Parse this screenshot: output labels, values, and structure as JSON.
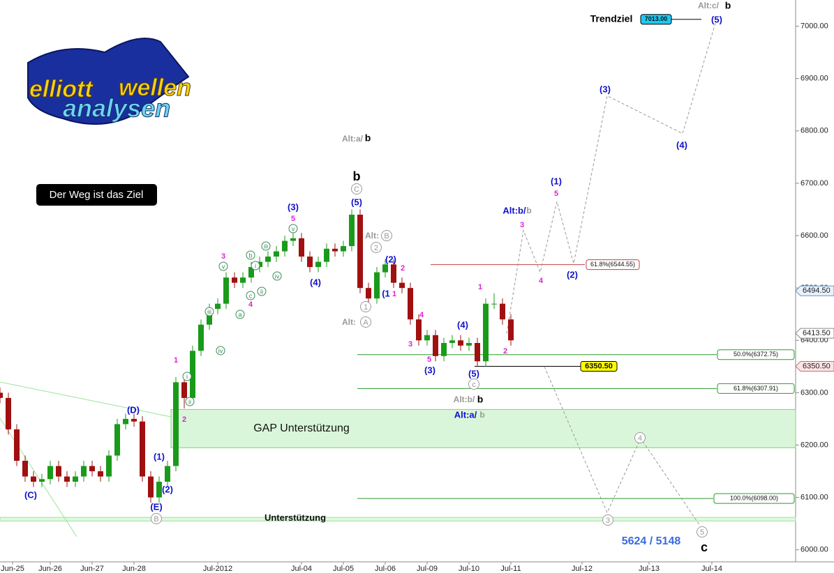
{
  "chart_data": {
    "type": "candlestick",
    "logo": [
      "elliott",
      "wellen",
      "analysen"
    ],
    "motto": "Der Weg ist das Ziel",
    "xlim": [
      0,
      190
    ],
    "xticks": [
      {
        "value": 3,
        "label": "Jun-25"
      },
      {
        "value": 12,
        "label": "Jun-26"
      },
      {
        "value": 22,
        "label": "Jun-27"
      },
      {
        "value": 32,
        "label": "Jun-28"
      },
      {
        "value": 52,
        "label": "Jul-2012"
      },
      {
        "value": 72,
        "label": "Jul-04"
      },
      {
        "value": 82,
        "label": "Jul-05"
      },
      {
        "value": 92,
        "label": "Jul-06"
      },
      {
        "value": 102,
        "label": "Jul-09"
      },
      {
        "value": 112,
        "label": "Jul-10"
      },
      {
        "value": 122,
        "label": "Jul-11"
      },
      {
        "value": 139,
        "label": "Jul-12"
      },
      {
        "value": 155,
        "label": "Jul-13"
      },
      {
        "value": 170,
        "label": "Jul-14"
      }
    ],
    "ylim": [
      5977,
      7050
    ],
    "yticks": [
      {
        "value": 6000,
        "label": "6000.00"
      },
      {
        "value": 6100,
        "label": "6100.00"
      },
      {
        "value": 6200,
        "label": "6200.00"
      },
      {
        "value": 6300,
        "label": "6300.00"
      },
      {
        "value": 6400,
        "label": "6400.00"
      },
      {
        "value": 6500,
        "label": "6500.00"
      },
      {
        "value": 6600,
        "label": "6600.00"
      },
      {
        "value": 6700,
        "label": "6700.00"
      },
      {
        "value": 6800,
        "label": "6800.00"
      },
      {
        "value": 6900,
        "label": "6900.00"
      },
      {
        "value": 7000,
        "label": "7000.00"
      }
    ],
    "up_color": "#1a9a1a",
    "down_color": "#a01010",
    "x": [
      0,
      2,
      4,
      6,
      8,
      10,
      12,
      14,
      16,
      18,
      20,
      22,
      24,
      26,
      28,
      30,
      32,
      34,
      36,
      38,
      40,
      42,
      44,
      46,
      48,
      50,
      52,
      54,
      56,
      58,
      60,
      62,
      64,
      66,
      68,
      70,
      72,
      74,
      76,
      78,
      80,
      82,
      84,
      86,
      88,
      90,
      92,
      94,
      96,
      98,
      100,
      102,
      104,
      106,
      108,
      110,
      112,
      114,
      116,
      118,
      120,
      122
    ],
    "open": [
      6300,
      6290,
      6230,
      6170,
      6140,
      6130,
      6135,
      6160,
      6140,
      6130,
      6140,
      6160,
      6150,
      6140,
      6180,
      6240,
      6250,
      6245,
      6140,
      6100,
      6130,
      6160,
      6320,
      6290,
      6380,
      6430,
      6460,
      6470,
      6520,
      6510,
      6520,
      6540,
      6550,
      6560,
      6570,
      6590,
      6595,
      6560,
      6540,
      6550,
      6575,
      6570,
      6580,
      6640,
      6500,
      6480,
      6530,
      6545,
      6510,
      6500,
      6440,
      6400,
      6410,
      6370,
      6395,
      6400,
      6390,
      6395,
      6360,
      6470,
      6470,
      6440
    ],
    "high": [
      6310,
      6300,
      6240,
      6180,
      6150,
      6145,
      6170,
      6170,
      6150,
      6150,
      6170,
      6170,
      6160,
      6190,
      6250,
      6260,
      6260,
      6255,
      6150,
      6140,
      6170,
      6330,
      6330,
      6390,
      6440,
      6470,
      6480,
      6530,
      6530,
      6530,
      6550,
      6560,
      6570,
      6580,
      6600,
      6605,
      6605,
      6570,
      6560,
      6585,
      6585,
      6590,
      6650,
      6650,
      6510,
      6540,
      6555,
      6555,
      6520,
      6510,
      6450,
      6420,
      6420,
      6405,
      6410,
      6410,
      6405,
      6405,
      6480,
      6490,
      6480,
      6450
    ],
    "low": [
      6280,
      6220,
      6160,
      6130,
      6120,
      6120,
      6125,
      6130,
      6120,
      6120,
      6130,
      6140,
      6130,
      6130,
      6170,
      6230,
      6235,
      6130,
      6090,
      6090,
      6120,
      6150,
      6270,
      6280,
      6370,
      6420,
      6450,
      6460,
      6500,
      6500,
      6510,
      6530,
      6540,
      6550,
      6560,
      6580,
      6550,
      6530,
      6530,
      6540,
      6560,
      6560,
      6570,
      6490,
      6470,
      6470,
      6520,
      6500,
      6490,
      6430,
      6390,
      6390,
      6360,
      6360,
      6385,
      6380,
      6380,
      6350,
      6350,
      6460,
      6430,
      6390
    ],
    "close": [
      6290,
      6230,
      6170,
      6140,
      6130,
      6135,
      6160,
      6140,
      6130,
      6140,
      6160,
      6150,
      6140,
      6180,
      6240,
      6250,
      6245,
      6140,
      6100,
      6130,
      6160,
      6320,
      6290,
      6380,
      6430,
      6460,
      6470,
      6520,
      6510,
      6520,
      6540,
      6550,
      6560,
      6570,
      6590,
      6595,
      6560,
      6540,
      6550,
      6575,
      6570,
      6580,
      6640,
      6500,
      6480,
      6530,
      6545,
      6510,
      6500,
      6440,
      6400,
      6410,
      6370,
      6395,
      6400,
      6390,
      6395,
      6360,
      6470,
      6470,
      6440,
      6400
    ],
    "projections": [
      {
        "x": [
          121,
          125,
          129,
          133,
          137,
          145,
          163,
          171
        ],
        "y": [
          6413,
          6610,
          6530,
          6665,
          6547,
          6867,
          6795,
          7010
        ]
      },
      {
        "x": [
          130,
          145,
          153,
          167
        ],
        "y": [
          6350,
          6071,
          6213,
          6048
        ]
      }
    ],
    "zones": [
      {
        "label": "GAP Unterstützung",
        "range": [
          6195,
          6268
        ]
      },
      {
        "label": "Unterstützung",
        "range": [
          6055,
          6062
        ]
      }
    ],
    "levels": [
      {
        "label": "61.8%(6544.55)",
        "value": 6544.55
      },
      {
        "label": "50.0%(6372.75)",
        "value": 6372.75
      },
      {
        "label": "61.8%(6307.91)",
        "value": 6307.91
      },
      {
        "label": "100.0%(6098.00)",
        "value": 6098.0
      },
      {
        "label": "6350.50",
        "value": 6350.5
      },
      {
        "label": "7013.00",
        "value": 7013.0
      }
    ],
    "price_tags": [
      {
        "value": 6494.5,
        "label": "6494.50"
      },
      {
        "value": 6413.5,
        "label": "6413.50"
      },
      {
        "value": 6350.5,
        "label": "6350.50"
      }
    ],
    "annotations": [
      "Alt:c/",
      "b",
      "(5)",
      "Trendziel",
      "Alt:a/",
      "b",
      "b",
      "C",
      "(5)",
      "(3)",
      "5",
      "v",
      "3",
      "v",
      "b",
      "i",
      "iii",
      "c",
      "ii",
      "iv",
      "4",
      "a",
      "(4)",
      "iii",
      "iv",
      "1",
      "i",
      "ii",
      "2",
      "(D)",
      "(1)",
      "(2)",
      "(C)",
      "(E)",
      "B",
      "Alt:",
      "B",
      "2",
      "(2)",
      "2",
      "(1",
      "1",
      "1",
      "Alt:",
      "A",
      "4",
      "3",
      "5",
      "(3)",
      "(4)",
      "(5)",
      "c",
      "1",
      "2",
      "Alt:b/",
      "b",
      "Alt:a/",
      "b",
      "Alt:b/",
      "b",
      "3",
      "4",
      "(1)",
      "5",
      "(2)",
      "(3)",
      "(4)",
      "4",
      "3",
      "5",
      "c",
      "5624 / 5148"
    ]
  }
}
